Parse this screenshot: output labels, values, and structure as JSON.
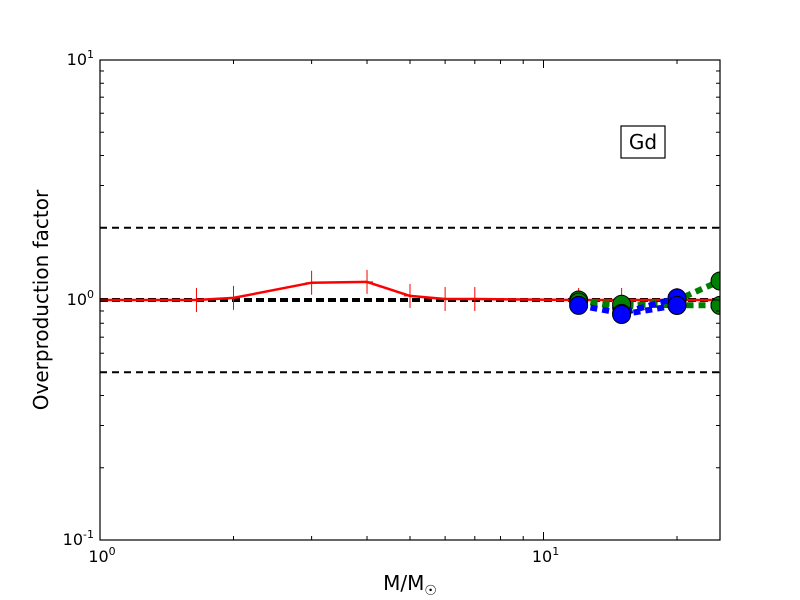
{
  "chart_data": {
    "type": "line",
    "x_scale": "log",
    "y_scale": "log",
    "xlim": [
      1,
      25
    ],
    "ylim": [
      0.1,
      10
    ],
    "xlabel": "M/M",
    "xlabel_subscript": "☉",
    "ylabel": "Overproduction factor",
    "x_ticks": [
      {
        "value": 1,
        "base": "10",
        "exp": "0"
      },
      {
        "value": 10,
        "base": "10",
        "exp": "1"
      }
    ],
    "y_ticks": [
      {
        "value": 0.1,
        "base": "10",
        "exp": "-1"
      },
      {
        "value": 1,
        "base": "10",
        "exp": "0"
      },
      {
        "value": 10,
        "base": "10",
        "exp": "1"
      }
    ],
    "annotation": "Gd",
    "reference_lines": [
      {
        "y": 2.0,
        "style": "dashed",
        "color": "#000000",
        "width": 2
      },
      {
        "y": 1.0,
        "style": "dashed",
        "color": "#000000",
        "width": 4
      },
      {
        "y": 0.5,
        "style": "dashed",
        "color": "#000000",
        "width": 2
      }
    ],
    "series": [
      {
        "color": "#ff0000",
        "style": "solid",
        "marker": "plus",
        "width": 2.5,
        "x": [
          1.0,
          1.65,
          2.0,
          3.0,
          4.0,
          5.0,
          6.0,
          7.0,
          12.0,
          15.0,
          20.0,
          25.0
        ],
        "y": [
          1.0,
          1.0,
          1.02,
          1.18,
          1.19,
          1.04,
          1.01,
          1.01,
          1.0,
          1.0,
          1.0,
          1.0
        ]
      },
      {
        "color": "#008000",
        "style": "dotted",
        "marker": "circle",
        "width": 6,
        "x": [
          12.0,
          15.0,
          20.0,
          25.0
        ],
        "y": [
          1.0,
          0.93,
          1.0,
          1.2
        ]
      },
      {
        "color": "#008000",
        "style": "dotted",
        "marker": "circle",
        "width": 6,
        "x": [
          12.0,
          15.0,
          20.0,
          25.0
        ],
        "y": [
          0.98,
          0.96,
          0.95,
          0.95
        ]
      },
      {
        "color": "#0000ff",
        "style": "dotted",
        "marker": "circle",
        "width": 6,
        "x": [
          12.0,
          15.0,
          20.0
        ],
        "y": [
          0.95,
          0.88,
          1.02
        ]
      },
      {
        "color": "#0000ff",
        "style": "dotted",
        "marker": "circle",
        "width": 6,
        "x": [
          15.0,
          20.0
        ],
        "y": [
          0.87,
          0.95
        ]
      }
    ]
  }
}
